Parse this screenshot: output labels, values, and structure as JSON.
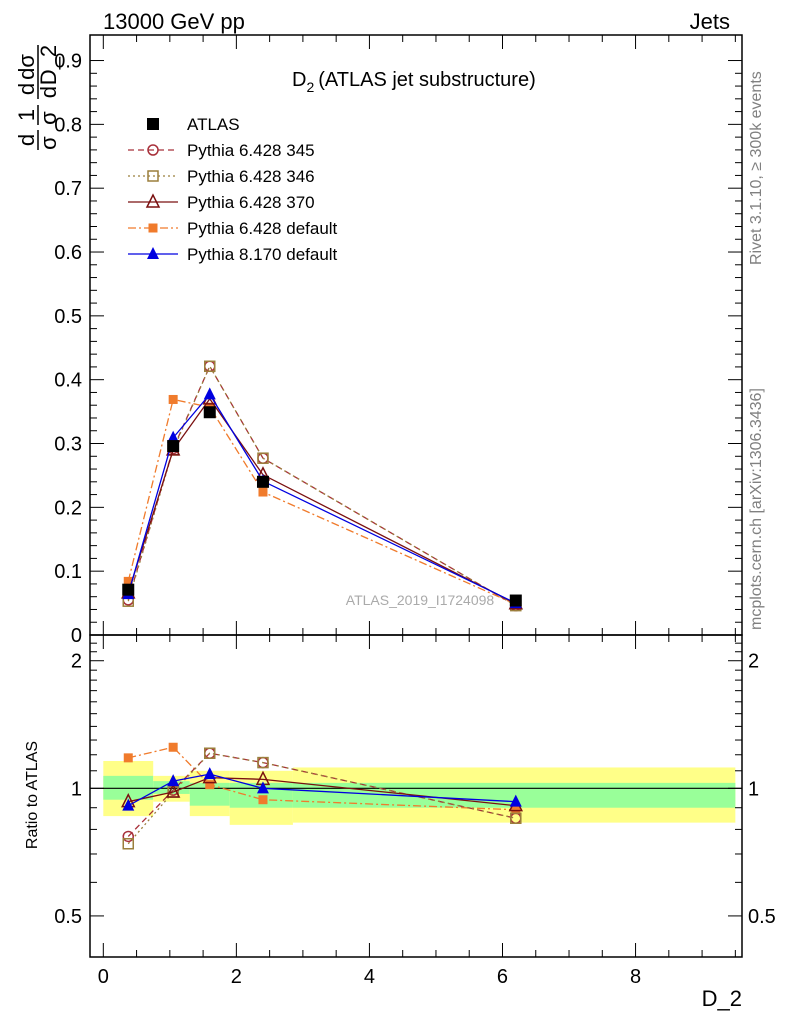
{
  "header": {
    "left": "13000 GeV pp",
    "right": "Jets"
  },
  "side_labels": {
    "rivet": "Rivet 3.1.10, ≥ 300k events",
    "mcplots": "mcplots.cern.ch [arXiv:1306.3436]"
  },
  "watermark": "ATLAS_2019_I1724098",
  "colors": {
    "atlas": "#000000",
    "py345": "#a8303a",
    "py346": "#9b7f3c",
    "py370": "#7a1010",
    "py6default": "#f07b2c",
    "py8default": "#0000e0",
    "band_outer": "#ffff88",
    "band_inner": "#99ff99"
  },
  "chart_data": [
    {
      "type": "scatter",
      "title": "D_2 (ATLAS jet substructure)",
      "title_main": "D",
      "title_sub": "2",
      "title_rest": "(ATLAS jet substructure)",
      "ylabel": "1/σ dσ/d D_2",
      "xlabel": "D_2",
      "xlim": [
        -0.2,
        9.6
      ],
      "ylim": [
        0,
        0.94
      ],
      "yticks": [
        "0",
        "0.1",
        "0.2",
        "0.3",
        "0.4",
        "0.5",
        "0.6",
        "0.7",
        "0.8",
        "0.9"
      ],
      "legend_position": "top-left",
      "x": [
        0.375,
        1.05,
        1.6,
        2.4,
        6.2
      ],
      "series": [
        {
          "name": "ATLAS",
          "key": "atlas",
          "marker": "square-filled",
          "line": "none",
          "values": [
            0.071,
            0.296,
            0.349,
            0.24,
            0.054
          ]
        },
        {
          "name": "Pythia 6.428 345",
          "key": "py345",
          "marker": "circle-open",
          "line": "dashed",
          "values": [
            0.055,
            0.292,
            0.421,
            0.277,
            0.046
          ]
        },
        {
          "name": "Pythia 6.428 346",
          "key": "py346",
          "marker": "square-open",
          "line": "dotted",
          "values": [
            0.053,
            0.29,
            0.421,
            0.277,
            0.046
          ]
        },
        {
          "name": "Pythia 6.428 370",
          "key": "py370",
          "marker": "triangle-open",
          "line": "solid",
          "values": [
            0.066,
            0.29,
            0.37,
            0.251,
            0.049
          ]
        },
        {
          "name": "Pythia 6.428 default",
          "key": "py6default",
          "marker": "square-filled-small",
          "line": "dashdot",
          "values": [
            0.084,
            0.369,
            0.357,
            0.224,
            0.048
          ]
        },
        {
          "name": "Pythia 8.170 default",
          "key": "py8default",
          "marker": "triangle-filled",
          "line": "solid",
          "values": [
            0.064,
            0.309,
            0.377,
            0.241,
            0.05
          ]
        }
      ]
    },
    {
      "type": "scatter",
      "title": "",
      "ylabel": "Ratio to ATLAS",
      "xlabel": "D_2",
      "log_y": true,
      "ylim": [
        0.4,
        2.3
      ],
      "yticks": [
        0.5,
        1,
        2
      ],
      "ytick_labels": [
        "0.5",
        "1",
        "2"
      ],
      "xticks": [
        0,
        2,
        4,
        6,
        8
      ],
      "xtick_labels": [
        "0",
        "2",
        "4",
        "6",
        "8"
      ],
      "xlim": [
        -0.2,
        9.6
      ],
      "bands": [
        {
          "x0": 0.0,
          "x1": 0.75,
          "inner": [
            0.94,
            1.07
          ],
          "outer": [
            0.86,
            1.16
          ]
        },
        {
          "x0": 0.75,
          "x1": 1.3,
          "inner": [
            0.97,
            1.04
          ],
          "outer": [
            0.93,
            1.07
          ]
        },
        {
          "x0": 1.3,
          "x1": 1.9,
          "inner": [
            0.91,
            1.03
          ],
          "outer": [
            0.86,
            1.1
          ]
        },
        {
          "x0": 1.9,
          "x1": 2.85,
          "inner": [
            0.9,
            1.03
          ],
          "outer": [
            0.82,
            1.1
          ]
        },
        {
          "x0": 2.85,
          "x1": 9.5,
          "inner": [
            0.9,
            1.03
          ],
          "outer": [
            0.83,
            1.12
          ]
        }
      ],
      "x": [
        0.375,
        1.05,
        1.6,
        2.4,
        6.2
      ],
      "series": [
        {
          "name": "Pythia 6.428 345",
          "key": "py345",
          "values": [
            0.77,
            0.99,
            1.21,
            1.15,
            0.85
          ]
        },
        {
          "name": "Pythia 6.428 346",
          "key": "py346",
          "values": [
            0.74,
            0.98,
            1.21,
            1.15,
            0.85
          ]
        },
        {
          "name": "Pythia 6.428 370",
          "key": "py370",
          "values": [
            0.93,
            0.98,
            1.06,
            1.05,
            0.91
          ]
        },
        {
          "name": "Pythia 6.428 default",
          "key": "py6default",
          "values": [
            1.18,
            1.25,
            1.02,
            0.94,
            0.89
          ]
        },
        {
          "name": "Pythia 8.170 default",
          "key": "py8default",
          "values": [
            0.91,
            1.04,
            1.08,
            1.0,
            0.93
          ]
        }
      ]
    }
  ]
}
